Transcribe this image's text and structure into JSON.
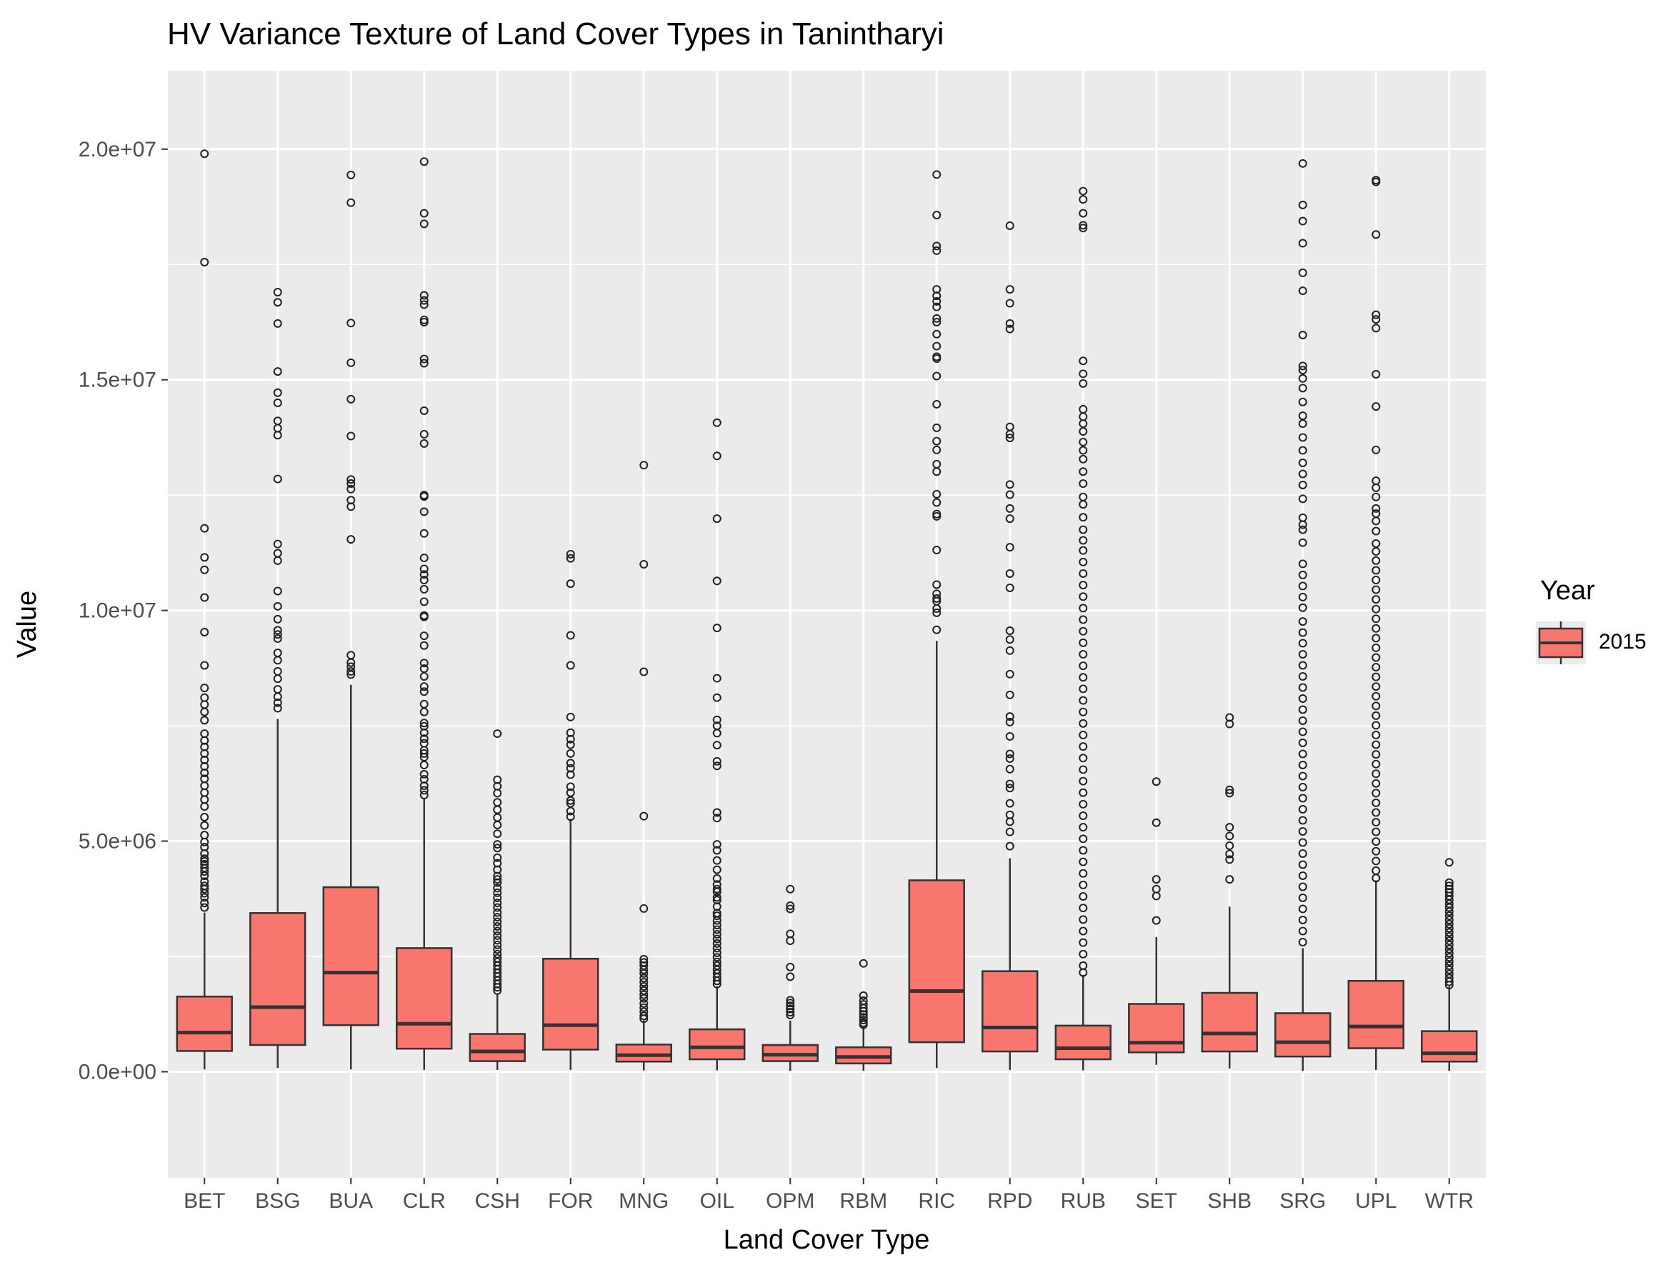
{
  "chart_data": {
    "type": "box",
    "title": "HV Variance Texture of Land Cover Types in Tanintharyi",
    "xlabel": "Land Cover Type",
    "ylabel": "Value",
    "ylim": [
      -2300000,
      21700000
    ],
    "yticks": [
      0,
      5000000,
      10000000,
      15000000,
      20000000
    ],
    "ytick_labels": [
      "0.0e+00",
      "5.0e+06",
      "1.0e+07",
      "1.5e+07",
      "2.0e+07"
    ],
    "grid": true,
    "legend": {
      "title": "Year",
      "position": "right",
      "entries": [
        "2015"
      ]
    },
    "fill_color": "#F8766D",
    "panel_color": "#EBEBEB",
    "categories": [
      "BET",
      "BSG",
      "BUA",
      "CLR",
      "CSH",
      "FOR",
      "MNG",
      "OIL",
      "OPM",
      "RBM",
      "RIC",
      "RPD",
      "RUB",
      "SET",
      "SHB",
      "SRG",
      "UPL",
      "WTR"
    ],
    "series": [
      {
        "name": "2015",
        "boxes": [
          {
            "category": "BET",
            "min": 50000,
            "q1": 450000,
            "median": 850000,
            "q3": 1630000,
            "max": 3450000,
            "outliers": [
              19900000,
              17550000,
              11780000,
              11150000,
              10880000,
              10280000,
              9530000,
              8810000,
              8320000,
              8110000,
              7960000,
              7800000,
              7620000,
              7330000,
              7180000,
              7040000,
              6900000,
              6760000,
              6620000,
              6480000,
              6350000,
              6200000,
              6050000,
              5900000,
              5750000,
              5520000,
              5340000,
              5130000,
              4980000,
              4870000,
              4730000,
              4620000,
              4560000,
              4500000,
              4420000,
              4340000,
              4250000,
              4120000,
              4030000,
              3960000,
              3870000,
              3780000,
              3660000,
              3560000
            ]
          },
          {
            "category": "BSG",
            "min": 80000,
            "q1": 580000,
            "median": 1400000,
            "q3": 3440000,
            "max": 7650000,
            "outliers": [
              16900000,
              16680000,
              16220000,
              15180000,
              14720000,
              14500000,
              14110000,
              13950000,
              13800000,
              12850000,
              11440000,
              11240000,
              11080000,
              10420000,
              10090000,
              9810000,
              9570000,
              9480000,
              9390000,
              9080000,
              8920000,
              8680000,
              8520000,
              8290000,
              8130000,
              8000000,
              7880000
            ]
          },
          {
            "category": "BUA",
            "min": 50000,
            "q1": 1010000,
            "median": 2150000,
            "q3": 4000000,
            "max": 8390000,
            "outliers": [
              19440000,
              18840000,
              16230000,
              15370000,
              14580000,
              13780000,
              12840000,
              12750000,
              12630000,
              12390000,
              12250000,
              11540000,
              9030000,
              8870000,
              8780000,
              8680000,
              8610000
            ]
          },
          {
            "category": "CLR",
            "min": 40000,
            "q1": 500000,
            "median": 1040000,
            "q3": 2680000,
            "max": 5920000,
            "outliers": [
              19730000,
              18610000,
              18380000,
              16830000,
              16720000,
              16630000,
              16300000,
              16250000,
              15450000,
              15360000,
              14330000,
              13820000,
              13620000,
              12500000,
              12470000,
              12140000,
              11670000,
              11140000,
              10900000,
              10780000,
              10660000,
              10460000,
              10190000,
              9890000,
              9860000,
              9450000,
              9240000,
              8860000,
              8740000,
              8570000,
              8350000,
              8240000,
              7970000,
              7800000,
              7560000,
              7490000,
              7350000,
              7220000,
              7120000,
              6970000,
              6900000,
              6820000,
              6650000,
              6450000,
              6340000,
              6200000,
              6100000,
              6000000
            ]
          },
          {
            "category": "CSH",
            "min": 40000,
            "q1": 230000,
            "median": 440000,
            "q3": 820000,
            "max": 1700000,
            "outliers": [
              7330000,
              6330000,
              6190000,
              6040000,
              5840000,
              5680000,
              5510000,
              5350000,
              5160000,
              4930000,
              4850000,
              4640000,
              4520000,
              4380000,
              4240000,
              4170000,
              4100000,
              3980000,
              3880000,
              3770000,
              3660000,
              3560000,
              3450000,
              3350000,
              3250000,
              3150000,
              3050000,
              2950000,
              2850000,
              2750000,
              2650000,
              2550000,
              2460000,
              2380000,
              2300000,
              2220000,
              2140000,
              2060000,
              1980000,
              1900000,
              1830000,
              1760000
            ]
          },
          {
            "category": "FOR",
            "min": 40000,
            "q1": 480000,
            "median": 1010000,
            "q3": 2450000,
            "max": 5480000,
            "outliers": [
              11220000,
              11130000,
              10580000,
              9460000,
              8810000,
              7690000,
              7350000,
              7210000,
              7090000,
              6900000,
              6690000,
              6580000,
              6440000,
              6180000,
              6050000,
              5880000,
              5820000,
              5650000,
              5530000
            ]
          },
          {
            "category": "MNG",
            "min": 30000,
            "q1": 220000,
            "median": 360000,
            "q3": 590000,
            "max": 1110000,
            "outliers": [
              13150000,
              11000000,
              8670000,
              5540000,
              3540000,
              2440000,
              2370000,
              2300000,
              2210000,
              2130000,
              2030000,
              1940000,
              1850000,
              1760000,
              1670000,
              1590000,
              1480000,
              1390000,
              1300000,
              1210000,
              1150000
            ]
          },
          {
            "category": "OIL",
            "min": 30000,
            "q1": 270000,
            "median": 530000,
            "q3": 920000,
            "max": 1850000,
            "outliers": [
              14070000,
              13350000,
              11990000,
              10640000,
              9620000,
              8530000,
              8110000,
              7630000,
              7500000,
              7340000,
              7080000,
              6730000,
              6630000,
              5620000,
              5500000,
              4930000,
              4800000,
              4580000,
              4380000,
              4190000,
              4060000,
              3960000,
              3900000,
              3780000,
              3720000,
              3580000,
              3440000,
              3380000,
              3280000,
              3180000,
              3080000,
              2980000,
              2880000,
              2780000,
              2680000,
              2580000,
              2480000,
              2380000,
              2300000,
              2210000,
              2130000,
              2050000,
              1970000,
              1900000
            ]
          },
          {
            "category": "OPM",
            "min": 20000,
            "q1": 230000,
            "median": 370000,
            "q3": 580000,
            "max": 1110000,
            "outliers": [
              3960000,
              3600000,
              3530000,
              2990000,
              2840000,
              2270000,
              2060000,
              1550000,
              1490000,
              1430000,
              1360000,
              1290000,
              1230000
            ]
          },
          {
            "category": "RBM",
            "min": 20000,
            "q1": 180000,
            "median": 320000,
            "q3": 530000,
            "max": 990000,
            "outliers": [
              2350000,
              1650000,
              1540000,
              1460000,
              1380000,
              1310000,
              1240000,
              1180000,
              1120000,
              1060000,
              1020000
            ]
          },
          {
            "category": "RIC",
            "min": 80000,
            "q1": 640000,
            "median": 1750000,
            "q3": 4150000,
            "max": 9340000,
            "outliers": [
              19450000,
              18570000,
              17900000,
              17800000,
              16960000,
              16820000,
              16700000,
              16580000,
              16330000,
              16250000,
              15990000,
              15730000,
              15500000,
              15460000,
              15080000,
              14470000,
              13960000,
              13670000,
              13480000,
              13170000,
              13010000,
              12520000,
              12340000,
              12090000,
              12040000,
              11310000,
              10560000,
              10360000,
              10260000,
              10200000,
              10040000,
              9950000,
              9580000
            ]
          },
          {
            "category": "RPD",
            "min": 40000,
            "q1": 440000,
            "median": 960000,
            "q3": 2180000,
            "max": 4630000,
            "outliers": [
              18340000,
              16960000,
              16660000,
              16220000,
              16100000,
              13980000,
              13820000,
              13740000,
              12730000,
              12510000,
              12210000,
              11990000,
              11370000,
              10800000,
              10490000,
              9560000,
              9370000,
              9130000,
              8620000,
              8170000,
              7700000,
              7580000,
              7270000,
              6890000,
              6790000,
              6560000,
              6240000,
              6150000,
              5820000,
              5570000,
              5420000,
              5200000,
              4890000
            ]
          },
          {
            "category": "RUB",
            "min": 30000,
            "q1": 270000,
            "median": 510000,
            "q3": 1000000,
            "max": 2100000,
            "outliers": [
              19090000,
              18910000,
              18610000,
              18350000,
              18290000,
              15410000,
              15130000,
              14920000,
              14360000,
              14200000,
              14050000,
              13880000,
              13650000,
              13470000,
              13280000,
              13010000,
              12750000,
              12460000,
              12300000,
              12020000,
              11750000,
              11520000,
              11300000,
              11050000,
              10800000,
              10550000,
              10300000,
              10050000,
              9800000,
              9550000,
              9300000,
              9050000,
              8800000,
              8550000,
              8300000,
              8050000,
              7800000,
              7550000,
              7300000,
              7050000,
              6800000,
              6550000,
              6300000,
              6050000,
              5800000,
              5550000,
              5300000,
              5050000,
              4800000,
              4550000,
              4300000,
              4050000,
              3800000,
              3550000,
              3300000,
              3050000,
              2800000,
              2550000,
              2300000,
              2150000
            ]
          },
          {
            "category": "SET",
            "min": 150000,
            "q1": 420000,
            "median": 630000,
            "q3": 1470000,
            "max": 2920000,
            "outliers": [
              6290000,
              5400000,
              4170000,
              3960000,
              3810000,
              3280000
            ]
          },
          {
            "category": "SHB",
            "min": 70000,
            "q1": 440000,
            "median": 830000,
            "q3": 1710000,
            "max": 3580000,
            "outliers": [
              7680000,
              7540000,
              6110000,
              6040000,
              5300000,
              5110000,
              4900000,
              4720000,
              4600000,
              4170000
            ]
          },
          {
            "category": "SRG",
            "min": 20000,
            "q1": 330000,
            "median": 640000,
            "q3": 1270000,
            "max": 2680000,
            "outliers": [
              19690000,
              18790000,
              18440000,
              17960000,
              17320000,
              16930000,
              15970000,
              15300000,
              15210000,
              15030000,
              14820000,
              14520000,
              14220000,
              14050000,
              13750000,
              13470000,
              13200000,
              12960000,
              12720000,
              12420000,
              12010000,
              11860000,
              11750000,
              11470000,
              11010000,
              10770000,
              10530000,
              10290000,
              10060000,
              9760000,
              9520000,
              9290000,
              9050000,
              8810000,
              8570000,
              8330000,
              8090000,
              7850000,
              7610000,
              7370000,
              7130000,
              6890000,
              6650000,
              6410000,
              6170000,
              5930000,
              5690000,
              5450000,
              5210000,
              4970000,
              4730000,
              4490000,
              4250000,
              4010000,
              3770000,
              3530000,
              3290000,
              3050000,
              2810000
            ]
          },
          {
            "category": "UPL",
            "min": 40000,
            "q1": 510000,
            "median": 980000,
            "q3": 1970000,
            "max": 4150000,
            "outliers": [
              19330000,
              19290000,
              18150000,
              16410000,
              16310000,
              16120000,
              15120000,
              14420000,
              13480000,
              12810000,
              12660000,
              12460000,
              12210000,
              12100000,
              11940000,
              11720000,
              11450000,
              11280000,
              11080000,
              10870000,
              10660000,
              10450000,
              10240000,
              10030000,
              9820000,
              9610000,
              9400000,
              9190000,
              8980000,
              8770000,
              8560000,
              8350000,
              8140000,
              7930000,
              7720000,
              7510000,
              7300000,
              7090000,
              6880000,
              6670000,
              6460000,
              6250000,
              6040000,
              5830000,
              5620000,
              5410000,
              5200000,
              4990000,
              4780000,
              4570000,
              4360000,
              4200000
            ]
          },
          {
            "category": "WTR",
            "min": 20000,
            "q1": 220000,
            "median": 400000,
            "q3": 880000,
            "max": 1850000,
            "outliers": [
              4540000,
              4100000,
              4030000,
              3960000,
              3890000,
              3810000,
              3730000,
              3640000,
              3560000,
              3470000,
              3380000,
              3290000,
              3200000,
              3110000,
              3020000,
              2930000,
              2840000,
              2750000,
              2660000,
              2570000,
              2480000,
              2390000,
              2300000,
              2210000,
              2120000,
              2030000,
              1950000,
              1880000
            ]
          }
        ]
      }
    ]
  }
}
